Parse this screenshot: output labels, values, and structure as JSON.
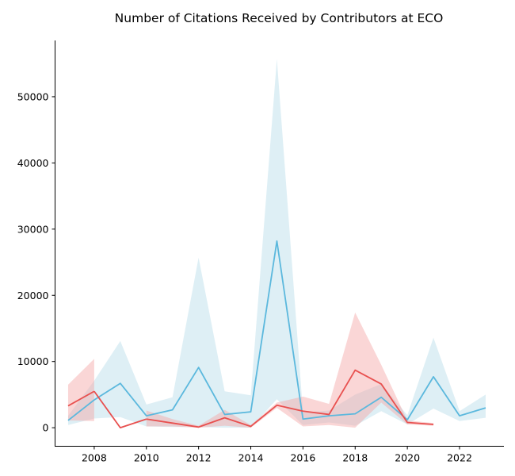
{
  "chart_data": {
    "type": "line",
    "title": "Number of Citations Received by Contributors at ECO",
    "xlabel": "",
    "ylabel": "",
    "xlim": [
      2006.5,
      2023.7
    ],
    "ylim": [
      -2800,
      58500
    ],
    "x_ticks": [
      2008,
      2010,
      2012,
      2014,
      2016,
      2018,
      2020,
      2022
    ],
    "y_ticks": [
      0,
      10000,
      20000,
      30000,
      40000,
      50000
    ],
    "grid": false,
    "legend": "none",
    "series": [
      {
        "color": "#5bb8dd",
        "band_color": "#add8e6",
        "x": [
          2007,
          2008,
          2009,
          2010,
          2011,
          2012,
          2013,
          2014,
          2015,
          2016,
          2017,
          2018,
          2019,
          2020,
          2021,
          2022,
          2023
        ],
        "values": [
          1100,
          4200,
          6700,
          1800,
          2700,
          9100,
          2000,
          2400,
          28200,
          1300,
          1800,
          2100,
          4600,
          1200,
          7700,
          1800,
          3000
        ],
        "lower": [
          400,
          1400,
          1600,
          200,
          100,
          100,
          0,
          0,
          4300,
          400,
          800,
          300,
          2500,
          500,
          2900,
          1000,
          1500
        ],
        "upper": [
          1800,
          7100,
          13100,
          3500,
          4600,
          25700,
          5500,
          4900,
          55700,
          2300,
          2600,
          5000,
          6600,
          1900,
          13600,
          2500,
          5000
        ]
      },
      {
        "color": "#e8504f",
        "band_color": "#f4a5a5",
        "segments": [
          {
            "x": [
              2007,
              2008
            ],
            "values": [
              3300,
              5500
            ],
            "lower": [
              1100,
              1000
            ],
            "upper": [
              6500,
              10400
            ]
          },
          {
            "x": [
              2010,
              2011,
              2012,
              2013,
              2014,
              2015,
              2016,
              2017,
              2018,
              2019,
              2020,
              2021
            ],
            "values": [
              1300,
              700,
              100,
              1500,
              200,
              3400,
              2500,
              2000,
              8700,
              6600,
              800,
              500
            ],
            "lower": [
              200,
              200,
              0,
              300,
              0,
              3000,
              200,
              400,
              0,
              3800,
              500,
              300
            ],
            "upper": [
              2600,
              1300,
              300,
              2700,
              400,
              3800,
              4700,
              3600,
              17400,
              9500,
              1100,
              700
            ]
          }
        ],
        "connector": {
          "x": [
            2008,
            2009,
            2010
          ],
          "values": [
            5500,
            0,
            1300
          ]
        }
      }
    ]
  }
}
